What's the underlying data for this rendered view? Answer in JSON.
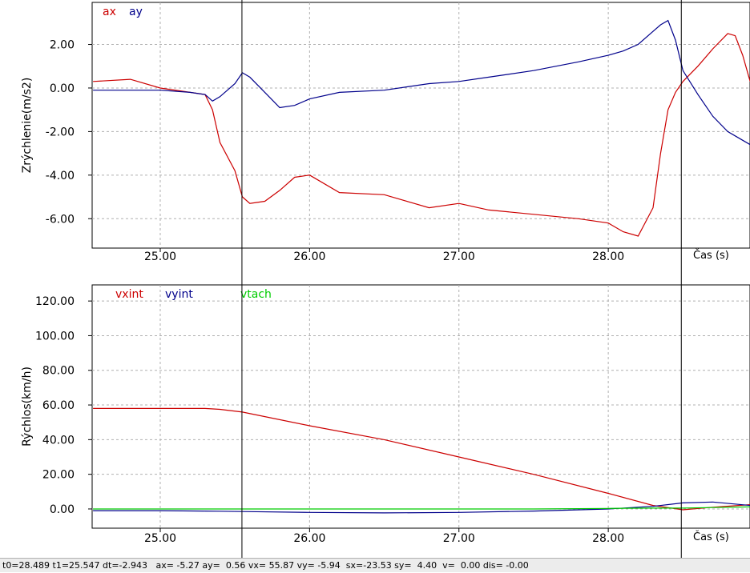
{
  "chart_data": [
    {
      "type": "line",
      "ylabel": "Zrýchlenie(m/s2)",
      "xlabel": "Čas (s)",
      "grid": true,
      "x": [
        24.55,
        24.8,
        25.0,
        25.2,
        25.3,
        25.35,
        25.4,
        25.5,
        25.55,
        25.6,
        25.7,
        25.8,
        25.9,
        26.0,
        26.2,
        26.5,
        26.8,
        27.0,
        27.2,
        27.5,
        27.8,
        28.0,
        28.1,
        28.2,
        28.3,
        28.35,
        28.4,
        28.45,
        28.5,
        28.6,
        28.7,
        28.8,
        28.85,
        28.9,
        28.95
      ],
      "series": [
        {
          "name": "ax",
          "color": "#cc0000",
          "values": [
            0.3,
            0.4,
            0.0,
            -0.2,
            -0.3,
            -1.0,
            -2.5,
            -3.8,
            -5.0,
            -5.3,
            -5.2,
            -4.7,
            -4.1,
            -4.0,
            -4.8,
            -4.9,
            -5.5,
            -5.3,
            -5.6,
            -5.8,
            -6.0,
            -6.2,
            -6.6,
            -6.8,
            -5.5,
            -3.0,
            -1.0,
            -0.2,
            0.3,
            1.0,
            1.8,
            2.5,
            2.4,
            1.5,
            0.3
          ]
        },
        {
          "name": "ay",
          "color": "#00008b",
          "values": [
            -0.1,
            -0.1,
            -0.1,
            -0.2,
            -0.3,
            -0.6,
            -0.4,
            0.2,
            0.7,
            0.5,
            -0.2,
            -0.9,
            -0.8,
            -0.5,
            -0.2,
            -0.1,
            0.2,
            0.3,
            0.5,
            0.8,
            1.2,
            1.5,
            1.7,
            2.0,
            2.6,
            2.9,
            3.1,
            2.2,
            0.8,
            -0.3,
            -1.3,
            -2.0,
            -2.2,
            -2.4,
            -2.6
          ]
        }
      ],
      "xlim": [
        24.544,
        28.949
      ],
      "xticks": [
        {
          "value": 25,
          "label": "25.00"
        },
        {
          "value": 26,
          "label": "26.00"
        },
        {
          "value": 27,
          "label": "27.00"
        },
        {
          "value": 28,
          "label": "28.00"
        }
      ],
      "ylim": [
        -7.35,
        3.93
      ],
      "yticks": [
        {
          "value": 2,
          "label": "2.00"
        },
        {
          "value": 0,
          "label": "0.00"
        },
        {
          "value": -2,
          "label": "-2.00"
        },
        {
          "value": -4,
          "label": "-4.00"
        },
        {
          "value": -6,
          "label": "-6.00"
        }
      ],
      "cursors": [
        25.547,
        28.489
      ]
    },
    {
      "type": "line",
      "ylabel": "Rýchlos(km/h)",
      "xlabel": "Čas (s)",
      "grid": true,
      "x": [
        24.55,
        25.0,
        25.3,
        25.4,
        25.55,
        26.0,
        26.5,
        27.0,
        27.5,
        28.0,
        28.3,
        28.5,
        28.7,
        28.95
      ],
      "series": [
        {
          "name": "vxint",
          "color": "#cc0000",
          "values": [
            58,
            58,
            58,
            57.5,
            55.9,
            48,
            40,
            30,
            20,
            9,
            2,
            -0.5,
            1,
            2.5
          ]
        },
        {
          "name": "vyint",
          "color": "#00008b",
          "values": [
            -1,
            -1,
            -1.2,
            -1.3,
            -1.5,
            -2,
            -2.3,
            -2,
            -1.2,
            0,
            1.5,
            3.5,
            4,
            2
          ]
        },
        {
          "name": "vtach",
          "color": "#00cc00",
          "values": [
            0,
            0,
            0,
            0,
            0,
            0,
            0,
            0,
            0,
            0.3,
            0.5,
            0.5,
            0.8,
            1.2
          ]
        }
      ],
      "xlim": [
        24.544,
        28.949
      ],
      "xticks": [
        {
          "value": 25,
          "label": "25.00"
        },
        {
          "value": 26,
          "label": "26.00"
        },
        {
          "value": 27,
          "label": "27.00"
        },
        {
          "value": 28,
          "label": "28.00"
        }
      ],
      "ylim": [
        -11.1,
        129.3
      ],
      "yticks": [
        {
          "value": 120,
          "label": "120.00"
        },
        {
          "value": 100,
          "label": "100.00"
        },
        {
          "value": 80,
          "label": "80.00"
        },
        {
          "value": 60,
          "label": "60.00"
        },
        {
          "value": 40,
          "label": "40.00"
        },
        {
          "value": 20,
          "label": "20.00"
        },
        {
          "value": 0,
          "label": "0.00"
        }
      ],
      "cursors": [
        25.547,
        28.489
      ]
    }
  ],
  "status_bar": "t0=28.489 t1=25.547 dt=-2.943   ax= -5.27 ay=  0.56 vx= 55.87 vy= -5.94  sx=-23.53 sy=  4.40  v=  0.00 dis= -0.00"
}
